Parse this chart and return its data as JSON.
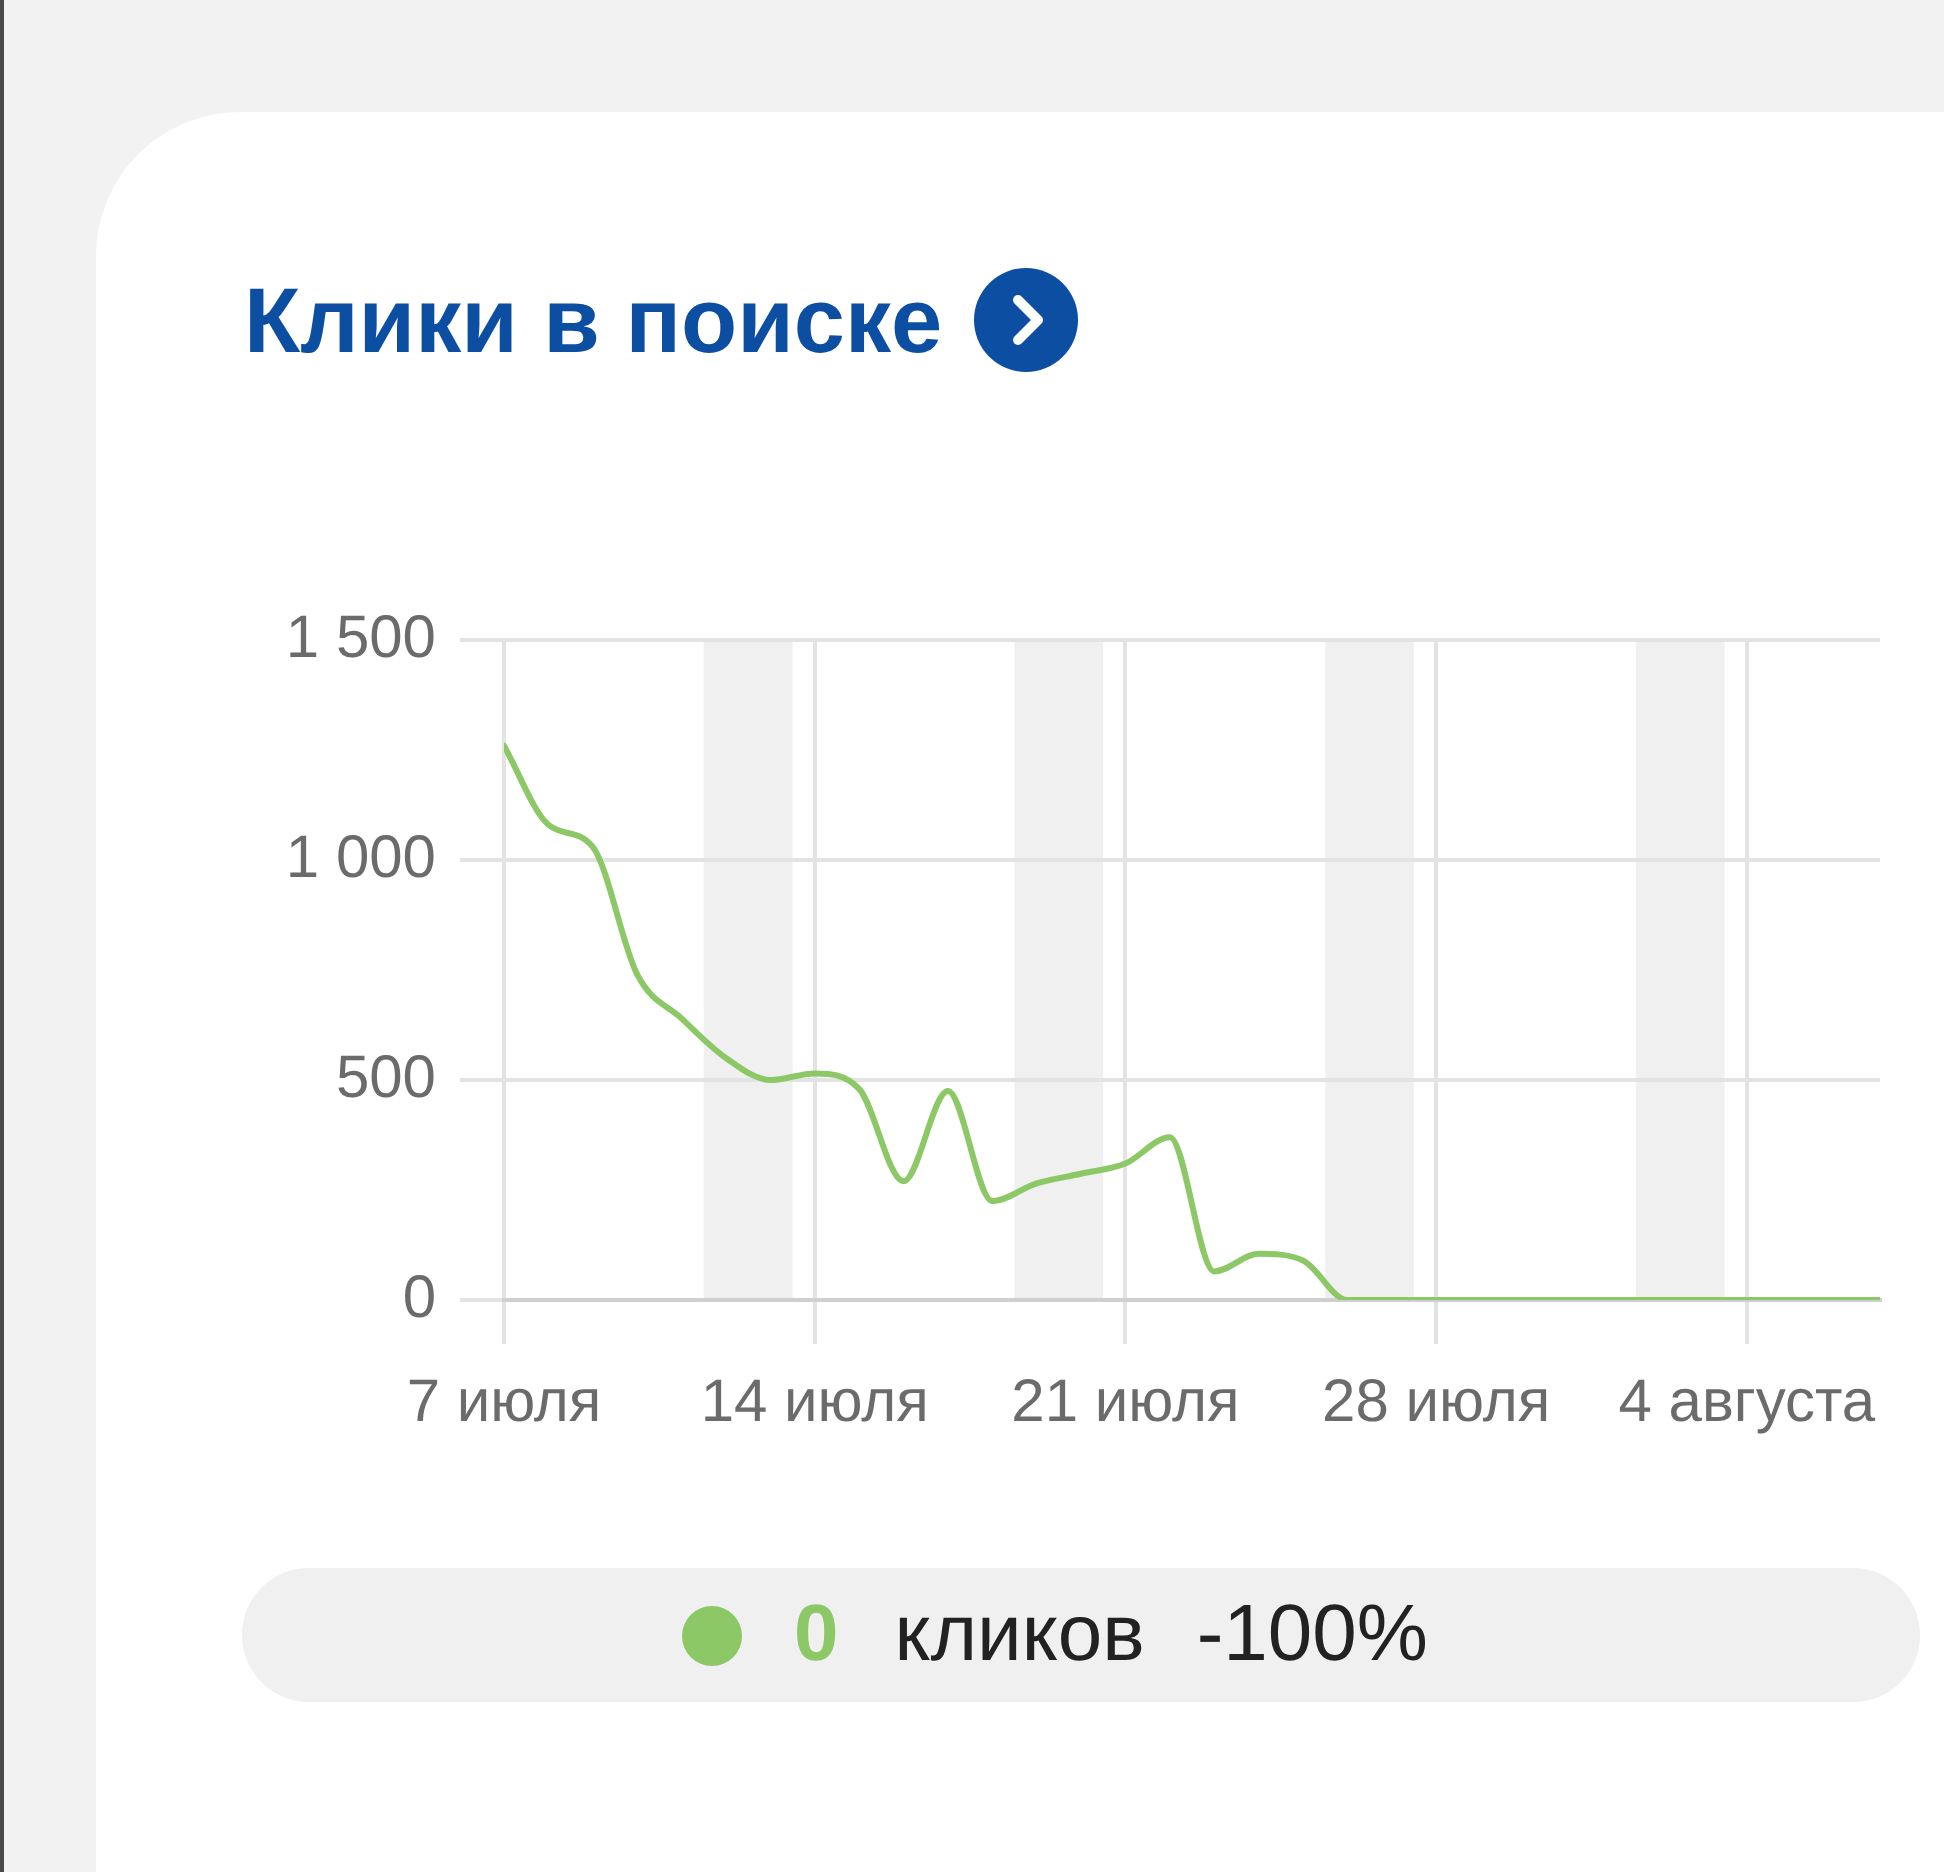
{
  "chart_data": {
    "type": "line",
    "title": "Клики в поиске",
    "x": [
      "--07-07",
      "--07-08",
      "--07-09",
      "--07-10",
      "--07-11",
      "--07-12",
      "--07-13",
      "--07-14",
      "--07-15",
      "--07-16",
      "--07-17",
      "--07-18",
      "--07-19",
      "--07-20",
      "--07-21",
      "--07-22",
      "--07-23",
      "--07-24",
      "--07-25",
      "--07-26",
      "--07-27",
      "--07-28",
      "--07-29",
      "--07-30",
      "--07-31",
      "--08-01",
      "--08-02",
      "--08-03",
      "--08-04",
      "--08-05",
      "--08-06",
      "--08-07"
    ],
    "series": [
      {
        "name": "кликов",
        "color": "#8cc866",
        "values": [
          1260,
          1080,
          1030,
          740,
          640,
          550,
          500,
          515,
          480,
          270,
          475,
          225,
          265,
          287,
          310,
          370,
          65,
          105,
          90,
          0,
          0,
          0,
          0,
          0,
          0,
          0,
          0,
          0,
          0,
          0,
          0,
          0
        ]
      }
    ],
    "xlim": [
      "--07-07",
      "--08-07"
    ],
    "xticks": [
      {
        "value": "--07-07",
        "label": "7 июля"
      },
      {
        "value": "--07-14",
        "label": "14 июля"
      },
      {
        "value": "--07-21",
        "label": "21 июля"
      },
      {
        "value": "--07-28",
        "label": "28 июля"
      },
      {
        "value": "--08-04",
        "label": "4 августа"
      }
    ],
    "ylim": [
      0,
      1500
    ],
    "yticks": [
      0,
      500,
      {
        "value": 1000,
        "label": "1 000"
      },
      {
        "value": 1500,
        "label": "1 500"
      }
    ],
    "bands": [
      {
        "axis": "x",
        "from": "--07-11T12:00",
        "to": "--07-13T12:00",
        "color": "#f0f0f0"
      },
      {
        "axis": "x",
        "from": "--07-18T12:00",
        "to": "--07-20T12:00",
        "color": "#f0f0f0"
      },
      {
        "axis": "x",
        "from": "--07-25T12:00",
        "to": "--07-27T12:00",
        "color": "#f0f0f0"
      },
      {
        "axis": "x",
        "from": "--08-01T12:00",
        "to": "--08-03T12:00",
        "color": "#f0f0f0"
      }
    ],
    "annotations": [
      "0",
      "-100%"
    ],
    "grid": true,
    "legend": "bottom",
    "marker": "none",
    "line_style": "solid"
  }
}
